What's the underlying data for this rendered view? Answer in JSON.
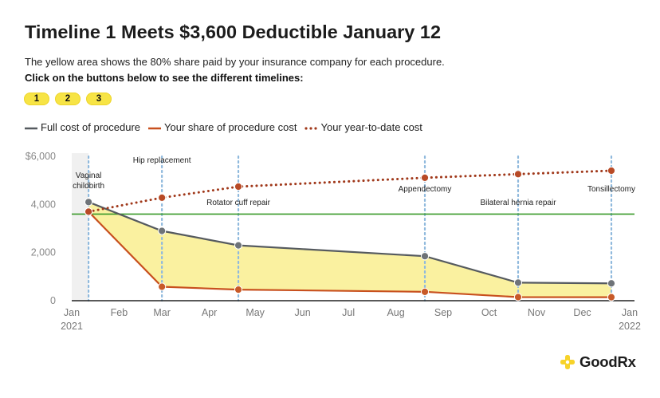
{
  "header": {
    "title": "Timeline 1 Meets $3,600 Deductible January 12",
    "subtitle": "The yellow area shows the 80% share paid by your insurance company for each procedure.",
    "instruction": "Click on the buttons below to see the different timelines:"
  },
  "buttons": [
    {
      "label": "1"
    },
    {
      "label": "2"
    },
    {
      "label": "3"
    }
  ],
  "legend": [
    {
      "label": "Full cost of procedure",
      "color": "#555a5f",
      "style": "solid"
    },
    {
      "label": "Your share of procedure cost",
      "color": "#c8501e",
      "style": "solid"
    },
    {
      "label": "Your year-to-date cost",
      "color": "#a0381a",
      "style": "dotted"
    }
  ],
  "colors": {
    "fill": "#faf1a0",
    "full_cost": "#555a5f",
    "your_share": "#c8501e",
    "ytd": "#a0381a",
    "deductible": "#3a9a2a",
    "event_line": "#8fb9dd",
    "axis": "#222222",
    "highlight_band": "#f0f0f0"
  },
  "chart_data": {
    "type": "line",
    "title": "Timeline 1 Meets $3,600 Deductible January 12",
    "xlabel": "",
    "ylabel": "",
    "ylim": [
      0,
      6000
    ],
    "y_ticks": [
      {
        "value": 0,
        "label": "0"
      },
      {
        "value": 2000,
        "label": "2,000"
      },
      {
        "value": 4000,
        "label": "4,000"
      },
      {
        "value": 6000,
        "label": "$6,000"
      }
    ],
    "x_ticks": [
      {
        "label": "Jan",
        "sub": "2021",
        "date": "2021-01-01"
      },
      {
        "label": "Feb",
        "sub": "",
        "date": "2021-02-01"
      },
      {
        "label": "Mar",
        "sub": "",
        "date": "2021-03-01"
      },
      {
        "label": "Apr",
        "sub": "",
        "date": "2021-04-01"
      },
      {
        "label": "May",
        "sub": "",
        "date": "2021-05-01"
      },
      {
        "label": "Jun",
        "sub": "",
        "date": "2021-06-01"
      },
      {
        "label": "Jul",
        "sub": "",
        "date": "2021-07-01"
      },
      {
        "label": "Aug",
        "sub": "",
        "date": "2021-08-01"
      },
      {
        "label": "Sep",
        "sub": "",
        "date": "2021-09-01"
      },
      {
        "label": "Oct",
        "sub": "",
        "date": "2021-10-01"
      },
      {
        "label": "Nov",
        "sub": "",
        "date": "2021-11-01"
      },
      {
        "label": "Dec",
        "sub": "",
        "date": "2021-12-01"
      },
      {
        "label": "Jan",
        "sub": "2022",
        "date": "2022-01-01"
      }
    ],
    "deductible": 3600,
    "highlight_range": [
      "2021-01-01",
      "2021-01-12"
    ],
    "procedures": [
      {
        "name": "Vaginal childbirth",
        "label_lines": [
          "Vaginal",
          "childbirth"
        ],
        "date": "2021-01-12",
        "full_cost": 4100,
        "your_share": 3700,
        "ytd": 3700,
        "label_pos": "upper"
      },
      {
        "name": "Hip replacement",
        "label_lines": [
          "Hip replacement"
        ],
        "date": "2021-03-01",
        "full_cost": 2900,
        "your_share": 580,
        "ytd": 4280,
        "label_pos": "top"
      },
      {
        "name": "Rotator cuff repair",
        "label_lines": [
          "Rotator cuff repair"
        ],
        "date": "2021-04-20",
        "full_cost": 2300,
        "your_share": 460,
        "ytd": 4740,
        "label_pos": "middle"
      },
      {
        "name": "Appendectomy",
        "label_lines": [
          "Appendectomy"
        ],
        "date": "2021-08-20",
        "full_cost": 1850,
        "your_share": 370,
        "ytd": 5110,
        "label_pos": "upper-low"
      },
      {
        "name": "Bilateral hernia repair",
        "label_lines": [
          "Bilateral hernia repair"
        ],
        "date": "2021-10-20",
        "full_cost": 750,
        "your_share": 150,
        "ytd": 5260,
        "label_pos": "middle"
      },
      {
        "name": "Tonsillectomy",
        "label_lines": [
          "Tonsillectomy"
        ],
        "date": "2021-12-20",
        "full_cost": 720,
        "your_share": 144,
        "ytd": 5404,
        "label_pos": "upper-low"
      }
    ]
  },
  "logo": {
    "text": "GoodRx",
    "icon": "plus-cross-icon",
    "color": "#f7d32a"
  }
}
